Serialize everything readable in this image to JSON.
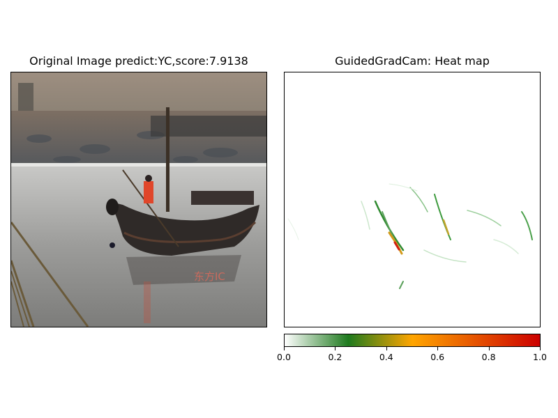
{
  "panels": {
    "left_title": "Original Image predict:YC,score:7.9138",
    "right_title": "GuidedGradCam: Heat map",
    "watermark": "东方IC"
  },
  "colorbar": {
    "colors": [
      "#ffffff",
      "#1e7a1e",
      "#ffa500",
      "#cc0000"
    ],
    "stops": [
      0,
      0.25,
      0.5,
      1.0
    ]
  },
  "chart_data": {
    "type": "heatmap",
    "title": "GuidedGradCam: Heat map",
    "colorbar_range": [
      0,
      1
    ],
    "colorbar_ticks": [
      0.0,
      0.2,
      0.4,
      0.6,
      0.8,
      1.0
    ],
    "tick_labels": [
      "0.0",
      "0.2",
      "0.4",
      "0.6",
      "0.8",
      "1.0"
    ],
    "axes_ticks_visible": false
  }
}
